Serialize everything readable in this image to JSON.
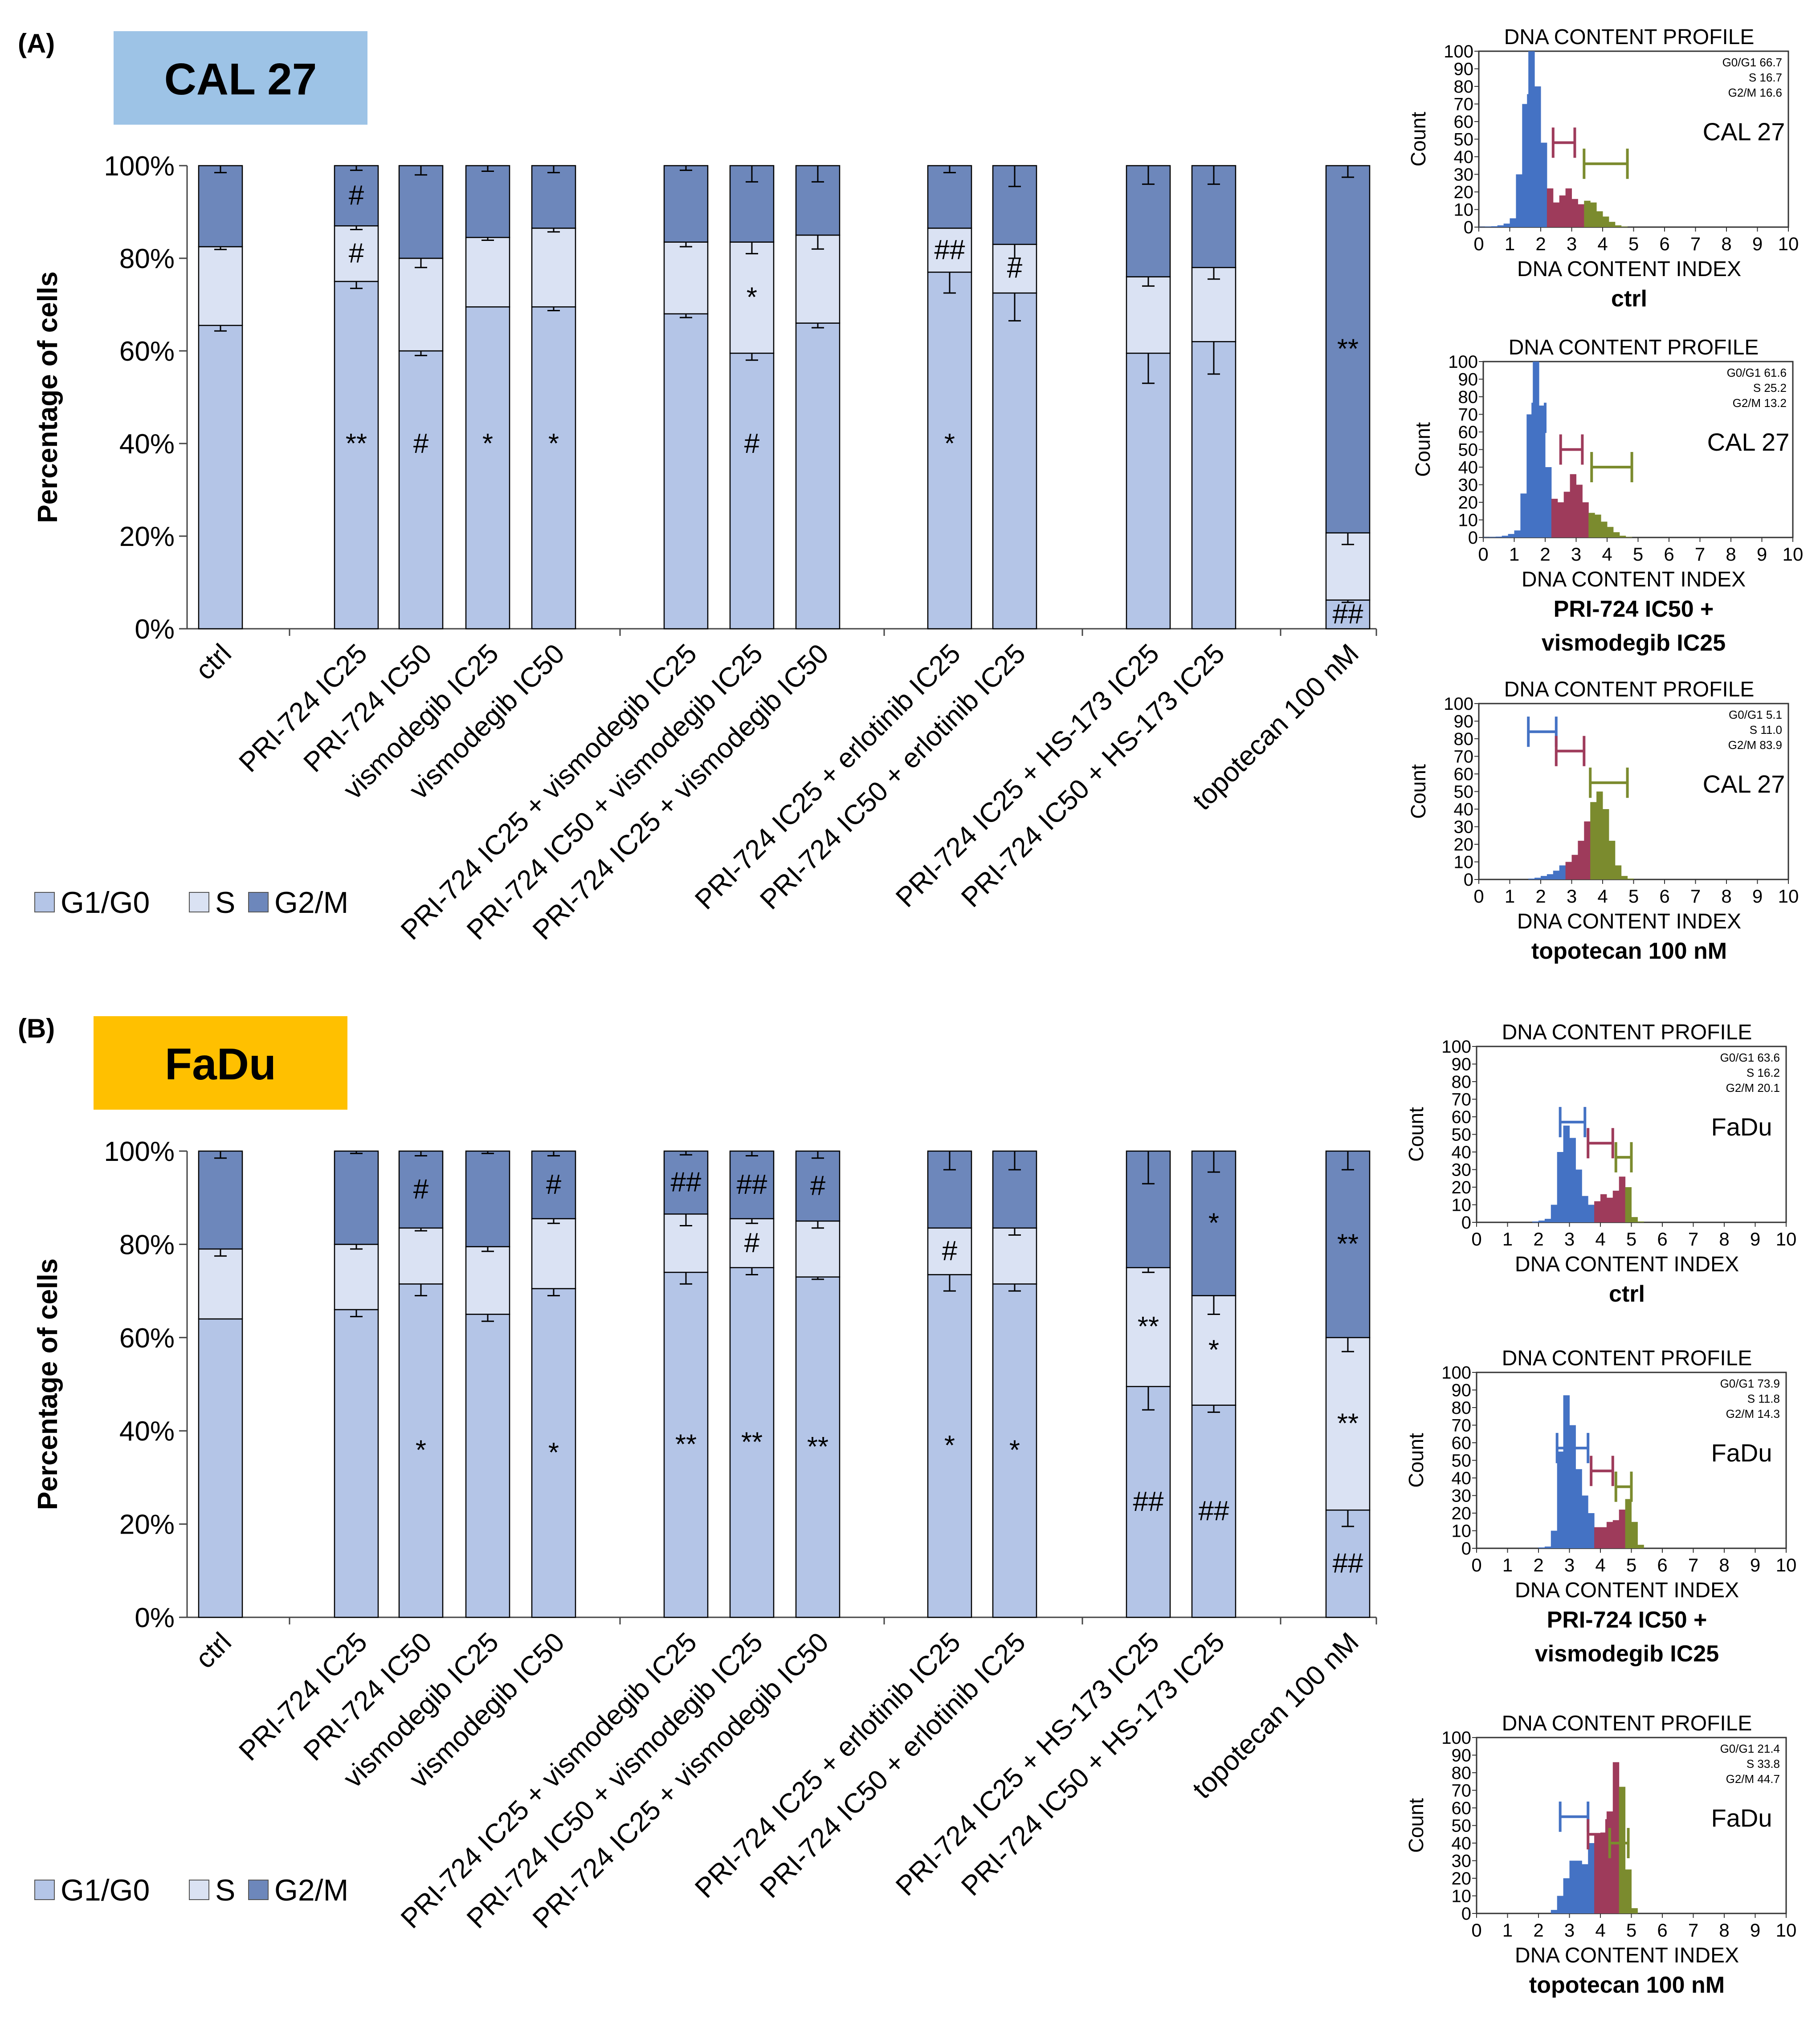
{
  "figure": {
    "colors": {
      "g1": "#b4c5e7",
      "s": "#dae2f3",
      "g2m": "#6d87bb",
      "blue_hist": "#4472c4",
      "red_hist": "#9e3b5b",
      "green_hist": "#7b8b2e",
      "caption_a": "#9dc3e6",
      "caption_b": "#ffc000"
    },
    "axis_title": "Percentage of cells",
    "legend": [
      "G1/G0",
      "S",
      "G2/M"
    ]
  },
  "chart_data": [
    {
      "panel_label": "(A)",
      "cell_line": "CAL 27",
      "type": "bar",
      "stacked": true,
      "ylabel": "Percentage of cells",
      "ylim": [
        0,
        100
      ],
      "yticks": [
        "0%",
        "20%",
        "40%",
        "60%",
        "80%",
        "100%"
      ],
      "categories": [
        "ctrl",
        "PRI-724 IC25",
        "PRI-724 IC50",
        "vismodegib IC25",
        "vismodegib IC50",
        "PRI-724 IC25 + vismodegib IC25",
        "PRI-724 IC50 + vismodegib IC25",
        "PRI-724 IC25 + vismodegib IC50",
        "PRI-724 IC25 + erlotinib IC25",
        "PRI-724 IC50 + erlotinib IC25",
        "PRI-724 IC25 + HS-173 IC25",
        "PRI-724 IC50 + HS-173 IC25",
        "topotecan 100 nM"
      ],
      "group_sizes": [
        1,
        4,
        3,
        2,
        2,
        1
      ],
      "series": [
        {
          "name": "G1/G0",
          "values": [
            65.5,
            75,
            60,
            69.5,
            69.5,
            68,
            59.5,
            66,
            77,
            72.5,
            59.5,
            62,
            6.2
          ],
          "errors": [
            1.2,
            1.5,
            1.0,
            0,
            0.8,
            0.8,
            1.5,
            1.0,
            4.5,
            6.0,
            6.5,
            7.0,
            0.5
          ],
          "marks": [
            "",
            "**",
            "#",
            "*",
            "*",
            "",
            "#",
            "",
            "*",
            "",
            "",
            "",
            "##"
          ]
        },
        {
          "name": "S",
          "values": [
            17,
            12,
            20,
            15,
            17,
            15.5,
            24,
            19,
            9.5,
            10.5,
            16.5,
            16,
            14.5
          ],
          "errors": [
            0.6,
            0.8,
            2.0,
            0.6,
            0.8,
            1.0,
            2.5,
            3.0,
            0,
            3.0,
            2.0,
            2.5,
            2.5
          ],
          "marks": [
            "",
            "#",
            "",
            "",
            "",
            "",
            "*",
            "",
            "##",
            "#",
            "",
            "",
            ""
          ]
        },
        {
          "name": "G2/M",
          "values": [
            17.5,
            13,
            20,
            15.5,
            13.5,
            16.5,
            16.5,
            15,
            13.5,
            17,
            24,
            22,
            79.3
          ],
          "errors": [
            1.5,
            1.0,
            2.0,
            1.2,
            1.5,
            1.0,
            3.5,
            3.5,
            1.5,
            4.5,
            4.0,
            4.0,
            2.5
          ],
          "marks": [
            "",
            "#",
            "",
            "",
            "",
            "",
            "",
            "",
            "",
            "",
            "",
            "",
            "**"
          ]
        }
      ],
      "legend_position": "bottom-left"
    },
    {
      "panel_label": "(B)",
      "cell_line": "FaDu",
      "type": "bar",
      "stacked": true,
      "ylabel": "Percentage of cells",
      "ylim": [
        0,
        100
      ],
      "yticks": [
        "0%",
        "20%",
        "40%",
        "60%",
        "80%",
        "100%"
      ],
      "categories": [
        "ctrl",
        "PRI-724 IC25",
        "PRI-724 IC50",
        "vismodegib IC25",
        "vismodegib IC50",
        "PRI-724 IC25 + vismodegib IC25",
        "PRI-724 IC50 + vismodegib IC25",
        "PRI-724 IC25 + vismodegib IC50",
        "PRI-724 IC25 + erlotinib IC25",
        "PRI-724 IC50 + erlotinib IC25",
        "PRI-724 IC25 + HS-173 IC25",
        "PRI-724 IC50 + HS-173 IC25",
        "topotecan 100 nM"
      ],
      "group_sizes": [
        1,
        4,
        3,
        2,
        2,
        1
      ],
      "series": [
        {
          "name": "G1/G0",
          "values": [
            64,
            66,
            71.5,
            65,
            70.5,
            74,
            75,
            73,
            73.5,
            71.5,
            49.5,
            45.5,
            23
          ],
          "errors": [
            0,
            1.5,
            2.5,
            1.5,
            1.5,
            2.5,
            1.5,
            0.5,
            3.5,
            1.5,
            5.0,
            1.5,
            3.5
          ],
          "marks": [
            "",
            "",
            "*",
            "",
            "*",
            "**",
            "**",
            "**",
            "*",
            "*",
            "##",
            "##",
            "##"
          ]
        },
        {
          "name": "S",
          "values": [
            15,
            14,
            12,
            14.5,
            15,
            12.5,
            10.5,
            12,
            10,
            12,
            25.5,
            23.5,
            37
          ],
          "errors": [
            1.5,
            1.0,
            0.6,
            1.0,
            1.0,
            2.5,
            1.0,
            1.5,
            0,
            1.5,
            1.0,
            4.0,
            3.0
          ],
          "marks": [
            "",
            "",
            "",
            "",
            "",
            "",
            "#",
            "",
            "#",
            "",
            "**",
            "*",
            "**"
          ]
        },
        {
          "name": "G2/M",
          "values": [
            21,
            20,
            16.5,
            20.5,
            14.5,
            13.5,
            14.5,
            15,
            16.5,
            16.5,
            25,
            31,
            40
          ],
          "errors": [
            1.5,
            0.5,
            1.0,
            0.5,
            1.0,
            0.8,
            1.0,
            1.5,
            4.0,
            4.0,
            7.0,
            4.5,
            4.0
          ],
          "marks": [
            "",
            "",
            "#",
            "",
            "#",
            "##",
            "##",
            "#",
            "",
            "",
            "",
            "*",
            "**"
          ]
        }
      ],
      "legend_position": "bottom-left"
    },
    {
      "type": "histogram",
      "title": "DNA CONTENT PROFILE",
      "xlabel": "DNA CONTENT INDEX",
      "ylabel": "Count",
      "cell_line": "CAL 27",
      "caption": [
        "ctrl"
      ],
      "stats": [
        "G0/G1 66.7",
        "S 16.7",
        "G2/M 16.6"
      ],
      "values": [
        0.2,
        0.3,
        0.5,
        1,
        2,
        5,
        30,
        70,
        100,
        80,
        48,
        22,
        14,
        18,
        22,
        16,
        13,
        15,
        14,
        9,
        6,
        3,
        1,
        0.3,
        0,
        0,
        0,
        0,
        0,
        0,
        0,
        0,
        0,
        0,
        0,
        0,
        0,
        0,
        0,
        0,
        0,
        0,
        0,
        0,
        0,
        0,
        0,
        0,
        0,
        0
      ],
      "gates": [
        [
          1.6,
          1.9,
          67
        ],
        [
          2.4,
          3.1,
          48
        ],
        [
          3.4,
          4.8,
          36
        ]
      ],
      "xticks": [
        0,
        1,
        2,
        3,
        4,
        5,
        6,
        7,
        8,
        9,
        10
      ],
      "yticks": [
        0,
        10,
        20,
        30,
        40,
        50,
        60,
        70,
        80,
        90,
        100
      ],
      "xlim": [
        0,
        10
      ],
      "ylim": [
        0,
        100
      ]
    },
    {
      "type": "histogram",
      "title": "DNA CONTENT PROFILE",
      "xlabel": "DNA CONTENT INDEX",
      "ylabel": "Count",
      "cell_line": "CAL 27",
      "caption": [
        "PRI-724 IC50 +",
        "vismodegib IC25"
      ],
      "stats": [
        "G0/G1 61.6",
        "S 25.2",
        "G2/M 13.2"
      ],
      "values": [
        0.2,
        0.3,
        0.5,
        1,
        2,
        4,
        25,
        70,
        100,
        75,
        40,
        22,
        20,
        26,
        36,
        30,
        20,
        14,
        13,
        9,
        6,
        3,
        1,
        0.3,
        0,
        0,
        0,
        0,
        0,
        0,
        0,
        0,
        0,
        0,
        0,
        0,
        0,
        0,
        0,
        0,
        0,
        0,
        0,
        0,
        0,
        0,
        0,
        0,
        0,
        0
      ],
      "gates": [
        [
          1.6,
          2.0,
          68
        ],
        [
          2.5,
          3.2,
          50
        ],
        [
          3.5,
          4.8,
          40
        ]
      ],
      "xticks": [
        0,
        1,
        2,
        3,
        4,
        5,
        6,
        7,
        8,
        9,
        10
      ],
      "yticks": [
        0,
        10,
        20,
        30,
        40,
        50,
        60,
        70,
        80,
        90,
        100
      ],
      "xlim": [
        0,
        10
      ],
      "ylim": [
        0,
        100
      ]
    },
    {
      "type": "histogram",
      "title": "DNA CONTENT PROFILE",
      "xlabel": "DNA CONTENT INDEX",
      "ylabel": "Count",
      "cell_line": "CAL 27",
      "caption": [
        "topotecan 100 nM"
      ],
      "stats": [
        "G0/G1 5.1",
        "S 11.0",
        "G2/M 83.9"
      ],
      "values": [
        0,
        0,
        0,
        0,
        0,
        0,
        0,
        0,
        0.5,
        1,
        2,
        3,
        5,
        8,
        10,
        14,
        22,
        33,
        44,
        50,
        40,
        22,
        8,
        2,
        0.5,
        0,
        0,
        0,
        0,
        0,
        0,
        0,
        0,
        0,
        0,
        0,
        0,
        0,
        0,
        0,
        0,
        0,
        0,
        0,
        0,
        0,
        0,
        0,
        0,
        0
      ],
      "gates": [
        [
          1.6,
          2.5,
          84
        ],
        [
          2.5,
          3.4,
          73
        ],
        [
          3.6,
          4.8,
          55
        ]
      ],
      "xticks": [
        0,
        1,
        2,
        3,
        4,
        5,
        6,
        7,
        8,
        9,
        10
      ],
      "yticks": [
        0,
        10,
        20,
        30,
        40,
        50,
        60,
        70,
        80,
        90,
        100
      ],
      "xlim": [
        0,
        10
      ],
      "ylim": [
        0,
        100
      ]
    },
    {
      "type": "histogram",
      "title": "DNA CONTENT PROFILE",
      "xlabel": "DNA CONTENT INDEX",
      "ylabel": "Count",
      "cell_line": "FaDu",
      "caption": [
        "ctrl"
      ],
      "stats": [
        "G0/G1 63.6",
        "S 16.2",
        "G2/M 20.1"
      ],
      "values": [
        0,
        0,
        0,
        0,
        0,
        0,
        0,
        0,
        0,
        0.5,
        1,
        2,
        10,
        40,
        55,
        48,
        30,
        15,
        10,
        12,
        16,
        14,
        18,
        26,
        20,
        3,
        0.5,
        0,
        0,
        0,
        0,
        0,
        0,
        0,
        0,
        0,
        0,
        0,
        0,
        0,
        0,
        0,
        0,
        0,
        0,
        0,
        0,
        0,
        0,
        0
      ],
      "gates": [
        [
          2.7,
          3.5,
          57
        ],
        [
          3.6,
          4.4,
          45
        ],
        [
          4.5,
          5.0,
          37
        ]
      ],
      "xticks": [
        0,
        1,
        2,
        3,
        4,
        5,
        6,
        7,
        8,
        9,
        10
      ],
      "yticks": [
        0,
        10,
        20,
        30,
        40,
        50,
        60,
        70,
        80,
        90,
        100
      ],
      "xlim": [
        0,
        10
      ],
      "ylim": [
        0,
        100
      ]
    },
    {
      "type": "histogram",
      "title": "DNA CONTENT PROFILE",
      "xlabel": "DNA CONTENT INDEX",
      "ylabel": "Count",
      "cell_line": "FaDu",
      "caption": [
        "PRI-724 IC50 +",
        "vismodegib IC25"
      ],
      "stats": [
        "G0/G1 73.9",
        "S 11.8",
        "G2/M 14.3"
      ],
      "values": [
        0,
        0,
        0,
        0,
        0,
        0,
        0,
        0,
        0,
        0,
        0.5,
        1,
        10,
        55,
        87,
        70,
        45,
        30,
        20,
        12,
        12,
        15,
        16,
        22,
        28,
        15,
        2,
        0,
        0,
        0,
        0,
        0,
        0,
        0,
        0,
        0,
        0,
        0,
        0,
        0,
        0,
        0,
        0,
        0,
        0,
        0,
        0,
        0,
        0,
        0
      ],
      "gates": [
        [
          2.6,
          3.6,
          57
        ],
        [
          3.7,
          4.4,
          44
        ],
        [
          4.5,
          5.0,
          35
        ]
      ],
      "xticks": [
        0,
        1,
        2,
        3,
        4,
        5,
        6,
        7,
        8,
        9,
        10
      ],
      "yticks": [
        0,
        10,
        20,
        30,
        40,
        50,
        60,
        70,
        80,
        90,
        100
      ],
      "xlim": [
        0,
        10
      ],
      "ylim": [
        0,
        100
      ]
    },
    {
      "type": "histogram",
      "title": "DNA CONTENT PROFILE",
      "xlabel": "DNA CONTENT INDEX",
      "ylabel": "Count",
      "cell_line": "FaDu",
      "caption": [
        "topotecan 100 nM"
      ],
      "stats": [
        "G0/G1 21.4",
        "S 33.8",
        "G2/M 44.7"
      ],
      "values": [
        0,
        0,
        0,
        0,
        0,
        0,
        0,
        0,
        0,
        0,
        0,
        0,
        2,
        10,
        20,
        30,
        30,
        28,
        40,
        45,
        46,
        58,
        86,
        72,
        25,
        3,
        0,
        0,
        0,
        0,
        0,
        0,
        0,
        0,
        0,
        0,
        0,
        0,
        0,
        0,
        0,
        0,
        0,
        0,
        0,
        0,
        0,
        0,
        0,
        0
      ],
      "gates": [
        [
          2.7,
          3.6,
          55
        ],
        [
          3.6,
          4.2,
          45
        ],
        [
          4.3,
          4.9,
          40
        ]
      ],
      "xticks": [
        0,
        1,
        2,
        3,
        4,
        5,
        6,
        7,
        8,
        9,
        10
      ],
      "yticks": [
        0,
        10,
        20,
        30,
        40,
        50,
        60,
        70,
        80,
        90,
        100
      ],
      "xlim": [
        0,
        10
      ],
      "ylim": [
        0,
        100
      ]
    }
  ]
}
